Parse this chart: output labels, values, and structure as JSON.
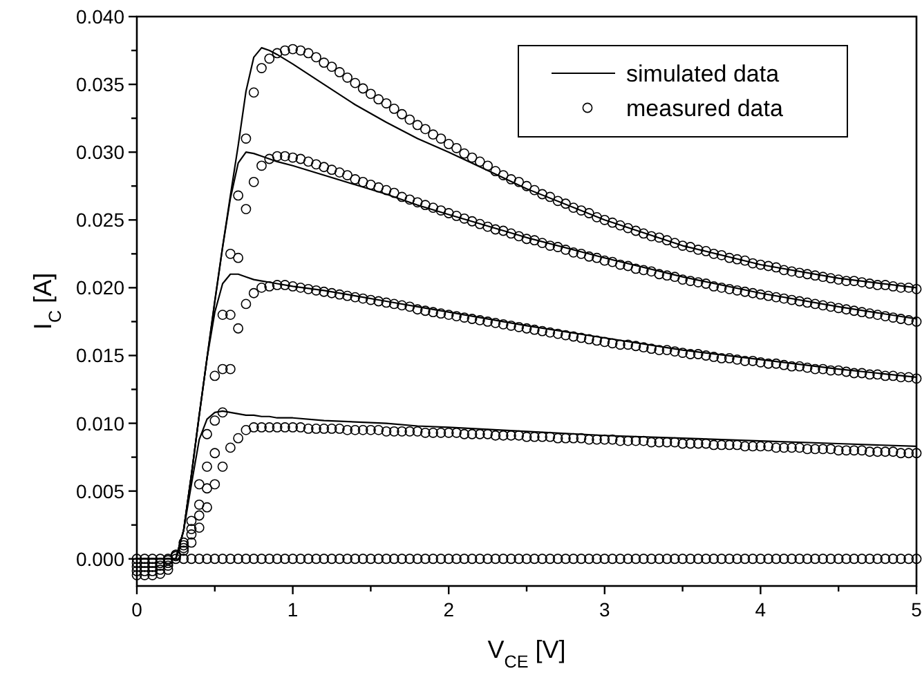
{
  "chart_data": {
    "type": "line",
    "xlabel": "V$_{CE}$ [V]",
    "ylabel": "I$_{C}$ [A]",
    "xlim": [
      0,
      5
    ],
    "ylim": [
      -0.002,
      0.04
    ],
    "xticks": [
      0,
      {
        "value": 0.5,
        "label": null
      },
      1,
      {
        "value": 1.5,
        "label": null
      },
      2,
      {
        "value": 2.5,
        "label": null
      },
      3,
      {
        "value": 3.5,
        "label": null
      },
      4,
      {
        "value": 4.5,
        "label": null
      },
      5
    ],
    "yticks": [
      {
        "value": 0,
        "label": "0.000"
      },
      {
        "value": 0.0025,
        "label": null
      },
      {
        "value": 0.005,
        "label": "0.005"
      },
      {
        "value": 0.0075,
        "label": null
      },
      {
        "value": 0.01,
        "label": "0.010"
      },
      {
        "value": 0.0125,
        "label": null
      },
      {
        "value": 0.015,
        "label": "0.015"
      },
      {
        "value": 0.0175,
        "label": null
      },
      {
        "value": 0.02,
        "label": "0.020"
      },
      {
        "value": 0.0225,
        "label": null
      },
      {
        "value": 0.025,
        "label": "0.025"
      },
      {
        "value": 0.0275,
        "label": null
      },
      {
        "value": 0.03,
        "label": "0.030"
      },
      {
        "value": 0.0325,
        "label": null
      },
      {
        "value": 0.035,
        "label": "0.035"
      },
      {
        "value": 0.0375,
        "label": null
      },
      {
        "value": 0.04,
        "label": "0.040"
      }
    ],
    "grid": false,
    "legend": "top right",
    "x": [
      0,
      0.05,
      0.1,
      0.15,
      0.2,
      0.25,
      0.3,
      0.35,
      0.4,
      0.45,
      0.5,
      0.55,
      0.6,
      0.65,
      0.7,
      0.75,
      0.8,
      0.85,
      0.9,
      0.95,
      1,
      1.05,
      1.1,
      1.15,
      1.2,
      1.25,
      1.3,
      1.35,
      1.4,
      1.45,
      1.5,
      1.55,
      1.6,
      1.65,
      1.7,
      1.75,
      1.8,
      1.85,
      1.9,
      1.95,
      2,
      2.05,
      2.1,
      2.15,
      2.2,
      2.25,
      2.3,
      2.35,
      2.4,
      2.45,
      2.5,
      2.55,
      2.6,
      2.65,
      2.7,
      2.75,
      2.8,
      2.85,
      2.9,
      2.95,
      3,
      3.05,
      3.1,
      3.15,
      3.2,
      3.25,
      3.3,
      3.35,
      3.4,
      3.45,
      3.5,
      3.55,
      3.6,
      3.65,
      3.7,
      3.75,
      3.8,
      3.85,
      3.9,
      3.95,
      4,
      4.05,
      4.1,
      4.15,
      4.2,
      4.25,
      4.3,
      4.35,
      4.4,
      4.45,
      4.5,
      4.55,
      4.6,
      4.65,
      4.7,
      4.75,
      4.8,
      4.85,
      4.9,
      4.95,
      5
    ],
    "series": [
      {
        "name": "simulated data",
        "marker": "none",
        "line_style": "solid",
        "color": "#000000",
        "x": [
          0,
          0.25,
          0.3,
          0.35,
          0.4,
          0.45,
          0.5,
          0.55,
          0.6,
          0.65,
          0.7,
          0.75,
          0.8,
          0.85,
          0.9,
          1,
          1.2,
          1.4,
          1.6,
          1.8,
          2,
          2.5,
          3,
          3.5,
          4,
          4.5,
          5
        ],
        "values": [
          0,
          0,
          0.0021,
          0.0062,
          0.0106,
          0.0148,
          0.019,
          0.023,
          0.0268,
          0.0305,
          0.0345,
          0.037,
          0.0377,
          0.0375,
          0.0372,
          0.0365,
          0.035,
          0.0335,
          0.0322,
          0.031,
          0.03,
          0.0273,
          0.025,
          0.0231,
          0.0217,
          0.0207,
          0.02
        ]
      },
      {
        "marker": "none",
        "line_style": "solid",
        "color": "#000000",
        "x": [
          0,
          0.25,
          0.3,
          0.35,
          0.4,
          0.45,
          0.5,
          0.55,
          0.6,
          0.65,
          0.7,
          0.75,
          0.8,
          0.85,
          0.9,
          1,
          1.2,
          1.4,
          1.6,
          1.8,
          2,
          2.5,
          3,
          3.5,
          4,
          4.5,
          5
        ],
        "values": [
          0,
          0,
          0.0021,
          0.0062,
          0.0106,
          0.0148,
          0.019,
          0.023,
          0.0266,
          0.0292,
          0.03,
          0.0299,
          0.0297,
          0.0295,
          0.0293,
          0.029,
          0.0283,
          0.0276,
          0.0269,
          0.0261,
          0.0254,
          0.0237,
          0.0222,
          0.0208,
          0.0196,
          0.0186,
          0.0177
        ]
      },
      {
        "marker": "none",
        "line_style": "solid",
        "color": "#000000",
        "x": [
          0,
          0.25,
          0.3,
          0.35,
          0.4,
          0.45,
          0.5,
          0.55,
          0.6,
          0.65,
          0.7,
          0.75,
          0.8,
          0.85,
          0.9,
          1,
          1.2,
          1.4,
          1.6,
          1.8,
          2,
          2.5,
          3,
          3.5,
          4,
          4.5,
          5
        ],
        "values": [
          0,
          0,
          0.0021,
          0.0062,
          0.0106,
          0.0148,
          0.0182,
          0.0203,
          0.021,
          0.021,
          0.0208,
          0.0206,
          0.0205,
          0.0204,
          0.0203,
          0.0201,
          0.0198,
          0.0194,
          0.019,
          0.0186,
          0.0182,
          0.0172,
          0.0163,
          0.0154,
          0.0147,
          0.014,
          0.0134
        ]
      },
      {
        "marker": "none",
        "line_style": "solid",
        "color": "#000000",
        "x": [
          0,
          0.25,
          0.3,
          0.35,
          0.4,
          0.45,
          0.5,
          0.55,
          0.6,
          0.65,
          0.7,
          0.75,
          0.8,
          0.85,
          0.9,
          1,
          1.2,
          1.4,
          1.6,
          1.8,
          2,
          2.5,
          3,
          3.5,
          4,
          4.5,
          5
        ],
        "values": [
          0,
          0,
          0.0021,
          0.0055,
          0.0088,
          0.0103,
          0.0108,
          0.0109,
          0.0108,
          0.0107,
          0.0106,
          0.0106,
          0.0105,
          0.0105,
          0.0104,
          0.0104,
          0.0102,
          0.0101,
          0.01,
          0.0098,
          0.0097,
          0.0094,
          0.0091,
          0.0089,
          0.0087,
          0.0085,
          0.0083
        ]
      },
      {
        "name": "measured data",
        "type": "scatter",
        "marker": "circle",
        "color": "#000000",
        "values": [
          -0.0012,
          -0.0012,
          -0.0012,
          -0.0011,
          -0.0008,
          0.0003,
          0.0012,
          0.0028,
          0.0055,
          0.0092,
          0.0135,
          0.018,
          0.0225,
          0.0268,
          0.031,
          0.0344,
          0.0362,
          0.0369,
          0.0373,
          0.0375,
          0.0376,
          0.0375,
          0.0373,
          0.037,
          0.0366,
          0.0363,
          0.0359,
          0.0355,
          0.0351,
          0.0347,
          0.0343,
          0.0339,
          0.0336,
          0.0332,
          0.0328,
          0.0324,
          0.032,
          0.0317,
          0.0313,
          0.031,
          0.0306,
          0.0303,
          0.0299,
          0.0296,
          0.0293,
          0.029,
          0.0286,
          0.0283,
          0.028,
          0.0278,
          0.0275,
          0.0272,
          0.0269,
          0.0267,
          0.0264,
          0.0262,
          0.0259,
          0.0257,
          0.0255,
          0.0252,
          0.025,
          0.0248,
          0.0246,
          0.0244,
          0.0242,
          0.024,
          0.0238,
          0.0237,
          0.0235,
          0.0233,
          0.0231,
          0.023,
          0.0228,
          0.0227,
          0.0225,
          0.0224,
          0.0222,
          0.0221,
          0.022,
          0.0218,
          0.0217,
          0.0216,
          0.0215,
          0.0213,
          0.0212,
          0.0211,
          0.021,
          0.0209,
          0.0208,
          0.0207,
          0.0206,
          0.0205,
          0.0205,
          0.0204,
          0.0203,
          0.0202,
          0.0202,
          0.0201,
          0.02,
          0.02,
          0.0199
        ]
      },
      {
        "type": "scatter",
        "marker": "circle",
        "color": "#000000",
        "values": [
          -0.0009,
          -0.0009,
          -0.0009,
          -0.0008,
          -0.0005,
          0.0003,
          0.001,
          0.0022,
          0.004,
          0.0068,
          0.0102,
          0.014,
          0.018,
          0.0222,
          0.0258,
          0.0278,
          0.029,
          0.0295,
          0.0297,
          0.0297,
          0.0296,
          0.0295,
          0.0293,
          0.0291,
          0.0289,
          0.0287,
          0.0285,
          0.0283,
          0.028,
          0.0278,
          0.0276,
          0.0274,
          0.0272,
          0.027,
          0.0267,
          0.0265,
          0.0263,
          0.0261,
          0.0259,
          0.0257,
          0.0255,
          0.0253,
          0.0251,
          0.0249,
          0.0247,
          0.0245,
          0.0243,
          0.0242,
          0.024,
          0.0238,
          0.0236,
          0.0235,
          0.0233,
          0.0231,
          0.023,
          0.0228,
          0.0226,
          0.0225,
          0.0223,
          0.0222,
          0.022,
          0.0219,
          0.0217,
          0.0216,
          0.0214,
          0.0213,
          0.0212,
          0.021,
          0.0209,
          0.0208,
          0.0206,
          0.0205,
          0.0204,
          0.0203,
          0.0201,
          0.02,
          0.0199,
          0.0198,
          0.0197,
          0.0196,
          0.0195,
          0.0194,
          0.0193,
          0.0192,
          0.0191,
          0.019,
          0.0189,
          0.0188,
          0.0187,
          0.0186,
          0.0185,
          0.0184,
          0.0183,
          0.0182,
          0.0181,
          0.018,
          0.0179,
          0.0178,
          0.0177,
          0.0176,
          0.0175
        ]
      },
      {
        "type": "scatter",
        "marker": "circle",
        "color": "#000000",
        "values": [
          -0.0006,
          -0.0006,
          -0.0006,
          -0.0005,
          -0.0003,
          0.0002,
          0.0008,
          0.0018,
          0.0032,
          0.0052,
          0.0078,
          0.0108,
          0.014,
          0.017,
          0.0188,
          0.0196,
          0.02,
          0.0201,
          0.0202,
          0.0202,
          0.0201,
          0.02,
          0.0199,
          0.0198,
          0.0197,
          0.0196,
          0.0195,
          0.0194,
          0.0193,
          0.0192,
          0.0191,
          0.019,
          0.0189,
          0.0188,
          0.0187,
          0.0186,
          0.0184,
          0.0183,
          0.0182,
          0.0181,
          0.018,
          0.0179,
          0.0178,
          0.0177,
          0.0176,
          0.0175,
          0.0174,
          0.0173,
          0.0172,
          0.0171,
          0.017,
          0.0169,
          0.0168,
          0.0167,
          0.0166,
          0.0165,
          0.0164,
          0.0163,
          0.0162,
          0.0161,
          0.016,
          0.0159,
          0.0158,
          0.0158,
          0.0157,
          0.0156,
          0.0155,
          0.0154,
          0.0154,
          0.0153,
          0.0152,
          0.0151,
          0.0151,
          0.015,
          0.0149,
          0.0148,
          0.0148,
          0.0147,
          0.0146,
          0.0146,
          0.0145,
          0.0144,
          0.0144,
          0.0143,
          0.0142,
          0.0142,
          0.0141,
          0.014,
          0.014,
          0.0139,
          0.0139,
          0.0138,
          0.0137,
          0.0137,
          0.0136,
          0.0136,
          0.0135,
          0.0135,
          0.0134,
          0.0134,
          0.0133
        ]
      },
      {
        "type": "scatter",
        "marker": "circle",
        "color": "#000000",
        "values": [
          -0.0003,
          -0.0003,
          -0.0003,
          -0.0003,
          -0.0001,
          0.0002,
          0.0006,
          0.0012,
          0.0023,
          0.0038,
          0.0055,
          0.0068,
          0.0082,
          0.0089,
          0.0095,
          0.0097,
          0.0097,
          0.0097,
          0.0097,
          0.0097,
          0.0097,
          0.0097,
          0.0096,
          0.0096,
          0.0096,
          0.0096,
          0.0096,
          0.0095,
          0.0095,
          0.0095,
          0.0095,
          0.0095,
          0.0094,
          0.0094,
          0.0094,
          0.0094,
          0.0094,
          0.0093,
          0.0093,
          0.0093,
          0.0093,
          0.0093,
          0.0092,
          0.0092,
          0.0092,
          0.0092,
          0.0091,
          0.0091,
          0.0091,
          0.0091,
          0.009,
          0.009,
          0.009,
          0.009,
          0.0089,
          0.0089,
          0.0089,
          0.0089,
          0.0088,
          0.0088,
          0.0088,
          0.0088,
          0.0087,
          0.0087,
          0.0087,
          0.0087,
          0.0086,
          0.0086,
          0.0086,
          0.0086,
          0.0085,
          0.0085,
          0.0085,
          0.0085,
          0.0084,
          0.0084,
          0.0084,
          0.0084,
          0.0083,
          0.0083,
          0.0083,
          0.0083,
          0.0082,
          0.0082,
          0.0082,
          0.0082,
          0.0081,
          0.0081,
          0.0081,
          0.0081,
          0.008,
          0.008,
          0.008,
          0.008,
          0.0079,
          0.0079,
          0.0079,
          0.0079,
          0.0078,
          0.0078,
          0.0078
        ]
      },
      {
        "type": "scatter",
        "marker": "circle",
        "color": "#000000",
        "values": [
          0,
          0,
          0,
          0,
          0,
          0,
          0,
          0,
          0,
          0,
          0,
          0,
          0,
          0,
          0,
          0,
          0,
          0,
          0,
          0,
          0,
          0,
          0,
          0,
          0,
          0,
          0,
          0,
          0,
          0,
          0,
          0,
          0,
          0,
          0,
          0,
          0,
          0,
          0,
          0,
          0,
          0,
          0,
          0,
          0,
          0,
          0,
          0,
          0,
          0,
          0,
          0,
          0,
          0,
          0,
          0,
          0,
          0,
          0,
          0,
          0,
          0,
          0,
          0,
          0,
          0,
          0,
          0,
          0,
          0,
          0,
          0,
          0,
          0,
          0,
          0,
          0,
          0,
          0,
          0,
          0,
          0,
          0,
          0,
          0,
          0,
          0,
          0,
          0,
          0,
          0,
          0,
          0,
          0,
          0,
          0,
          0,
          0,
          0,
          0,
          0
        ]
      }
    ]
  }
}
